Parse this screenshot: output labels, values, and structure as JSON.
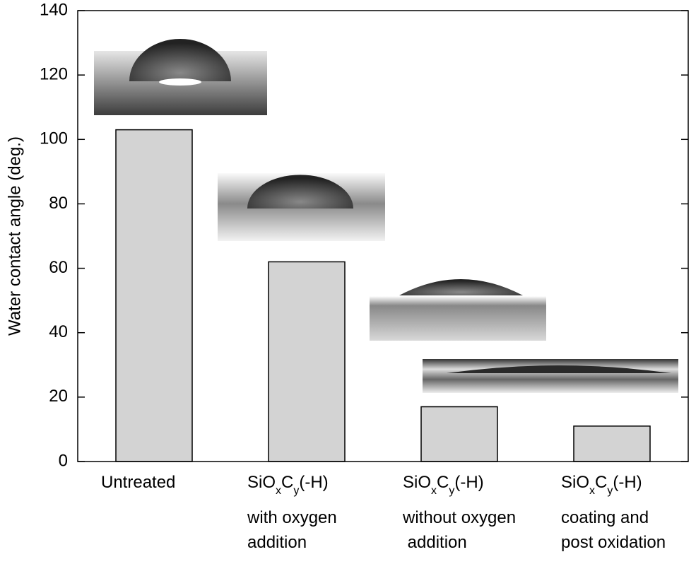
{
  "chart_data": {
    "type": "bar",
    "y_label": "Water contact angle (deg.)",
    "categories": [
      "Untreated",
      "SiOxCy(-H)\nwith  oxygen\naddition",
      "SiOxCy(-H)\nwithout oxygen\n addition",
      "SiOxCy(-H)\ncoating and\npost oxidation"
    ],
    "values": [
      103,
      62,
      17,
      11
    ],
    "color": "#d3d3d3",
    "ylim": [
      0,
      140
    ],
    "yticks": [
      0,
      20,
      40,
      60,
      80,
      100,
      120,
      140
    ],
    "grid": false
  }
}
